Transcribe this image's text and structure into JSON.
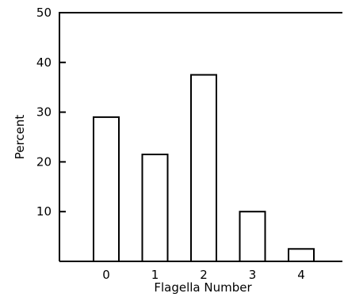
{
  "chart_data": {
    "type": "bar",
    "title": "",
    "xlabel": "Flagella Number",
    "ylabel": "Percent",
    "categories": [
      "0",
      "1",
      "2",
      "3",
      "4"
    ],
    "values": [
      29,
      21.5,
      37.5,
      10,
      2.5
    ],
    "ylim": [
      0,
      50
    ],
    "yticks": [
      "10",
      "20",
      "30",
      "40",
      "50"
    ],
    "grid": false,
    "legend": "none"
  }
}
